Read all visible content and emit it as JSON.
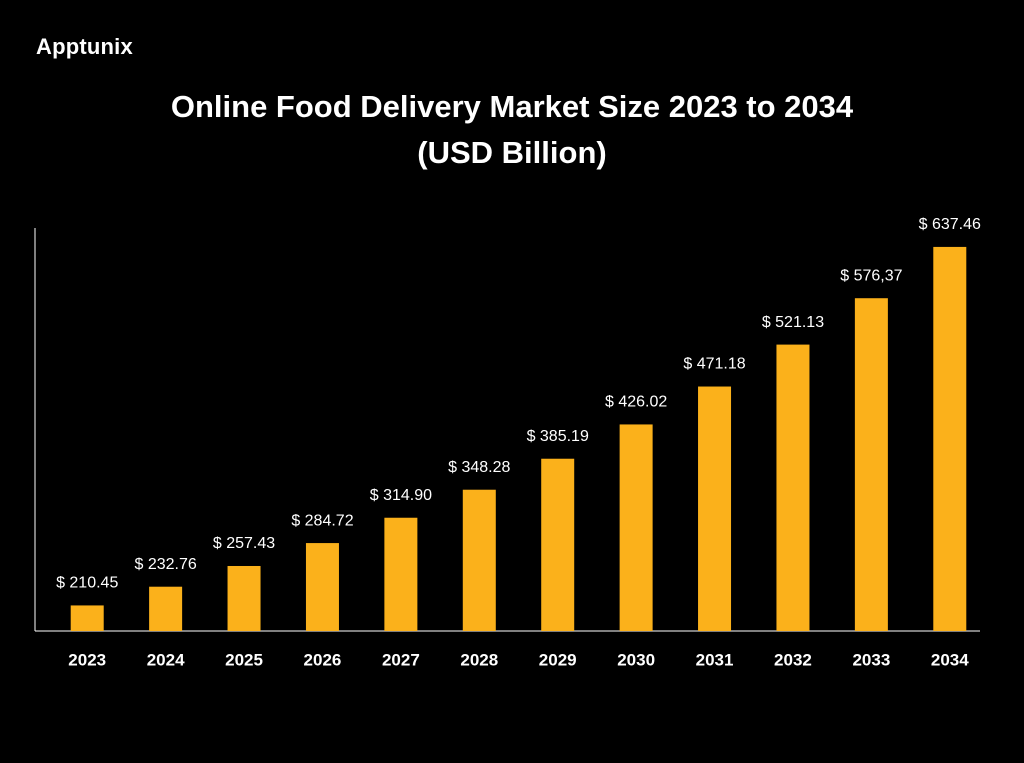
{
  "brand": "Apptunix",
  "chart_data": {
    "type": "bar",
    "title": "Online Food Delivery Market Size 2023 to 2034 (USD Billion)",
    "categories": [
      "2023",
      "2024",
      "2025",
      "2026",
      "2027",
      "2028",
      "2029",
      "2030",
      "2031",
      "2032",
      "2033",
      "2034"
    ],
    "values": [
      210.45,
      232.76,
      257.43,
      284.72,
      314.9,
      348.28,
      385.19,
      426.02,
      471.18,
      521.13,
      576.37,
      637.46
    ],
    "value_labels": [
      "$ 210.45",
      "$ 232.76",
      "$ 257.43",
      "$ 284.72",
      "$ 314.90",
      "$ 348.28",
      "$ 385.19",
      "$ 426.02",
      "$ 471.18",
      "$ 521.13",
      "$ 576,37",
      "$ 637.46"
    ],
    "color": "#fbb11b",
    "ylim": [
      180,
      660
    ]
  }
}
